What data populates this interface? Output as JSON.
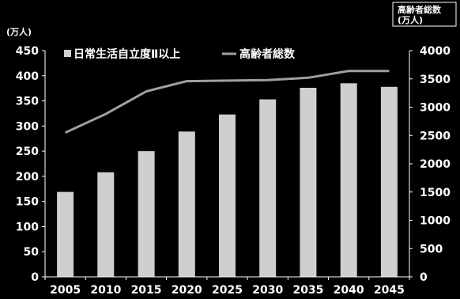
{
  "chart_data": {
    "type": "bar",
    "title": "",
    "left_axis_unit": "(万人)",
    "right_axis_title_line1": "高齢者総数",
    "right_axis_title_line2": "(万人)",
    "categories": [
      "2005",
      "2010",
      "2015",
      "2020",
      "2025",
      "2030",
      "2035",
      "2040",
      "2045"
    ],
    "y_left": {
      "min": 0,
      "max": 450,
      "ticks": [
        0,
        50,
        100,
        150,
        200,
        250,
        300,
        350,
        400,
        450
      ]
    },
    "y_right": {
      "min": 0,
      "max": 4000,
      "ticks": [
        0,
        500,
        1000,
        1500,
        2000,
        2500,
        3000,
        3500,
        4000
      ]
    },
    "series": [
      {
        "name": "日常生活自立度Ⅱ以上",
        "kind": "bar",
        "axis": "left",
        "values": [
          169,
          208,
          250,
          289,
          323,
          353,
          376,
          385,
          378
        ]
      },
      {
        "name": "高齢者総数",
        "kind": "line",
        "axis": "right",
        "values": [
          2550,
          2880,
          3280,
          3460,
          3470,
          3480,
          3520,
          3640,
          3640
        ]
      }
    ],
    "colors": {
      "bar": "#cfcfcf",
      "line": "#a0a0a0",
      "axis": "#ffffff",
      "background": "#000000"
    },
    "grid": false
  }
}
